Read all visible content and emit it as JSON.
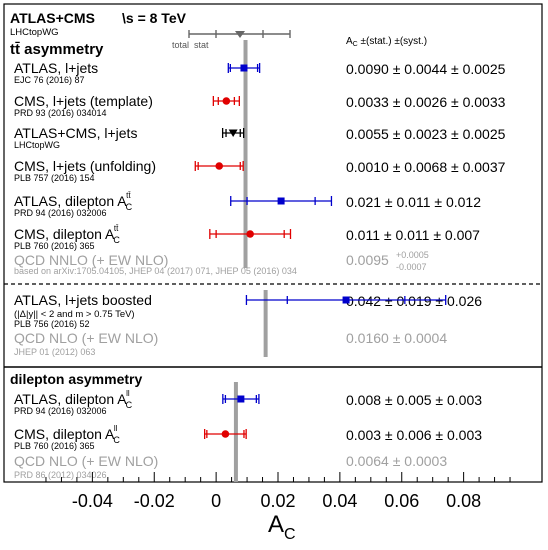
{
  "chart_data": {
    "type": "scatter",
    "xlabel": "A",
    "xlabel_sub": "C",
    "xlim": [
      -0.06,
      0.1
    ],
    "ticks": [
      "-0.04",
      "-0.02",
      "0",
      "0.02",
      "0.04",
      "0.06",
      "0.08"
    ],
    "tick_values": [
      -0.04,
      -0.02,
      0,
      0.02,
      0.04,
      0.06,
      0.08
    ],
    "header": {
      "title": "ATLAS+CMS",
      "energy": "\\s = 8 TeV",
      "group": "LHCtopWG",
      "legend_total": "total",
      "legend_stat": "stat",
      "column_header": "A",
      "column_header_sub": "C",
      "column_header_rest": " ±(stat.) ±(syst.)"
    },
    "sections": {
      "ttbar": "tt̄ asymmetry",
      "dilepton": "dilepton asymmetry"
    },
    "measurements": [
      {
        "label": "ATLAS, l+jets",
        "ref": "EJC 76 (2016) 87",
        "value": 0.009,
        "stat": 0.0044,
        "syst": 0.0025,
        "text": "0.0090 ± 0.0044 ± 0.0025",
        "color": "#0000cc",
        "marker": "square"
      },
      {
        "label": "CMS, l+jets (template)",
        "ref": "PRD 93 (2016) 034014",
        "value": 0.0033,
        "stat": 0.0026,
        "syst": 0.0033,
        "text": "0.0033 ± 0.0026 ± 0.0033",
        "color": "#e00000",
        "marker": "circle"
      },
      {
        "label": "ATLAS+CMS, l+jets",
        "ref": "LHCtopWG",
        "value": 0.0055,
        "stat": 0.0023,
        "syst": 0.0025,
        "text": "0.0055 ± 0.0023 ± 0.0025",
        "color": "#000000",
        "marker": "triangle"
      },
      {
        "label": "CMS, l+jets (unfolding)",
        "ref": "PLB 757 (2016) 154",
        "value": 0.001,
        "stat": 0.0068,
        "syst": 0.0037,
        "text": "0.0010 ± 0.0068 ± 0.0037",
        "color": "#e00000",
        "marker": "circle"
      },
      {
        "label": "ATLAS, dilepton A",
        "label_sub": "C",
        "label_sup": "tt̄",
        "ref": "PRD 94 (2016) 032006",
        "value": 0.021,
        "stat": 0.011,
        "syst": 0.012,
        "text": "0.021 ± 0.011 ± 0.012",
        "color": "#0000cc",
        "marker": "square"
      },
      {
        "label": "CMS, dilepton A",
        "label_sub": "C",
        "label_sup": "tt̄",
        "ref": "PLB 760 (2016) 365",
        "value": 0.011,
        "stat": 0.011,
        "syst": 0.007,
        "text": "0.011 ± 0.011 ± 0.007",
        "color": "#e00000",
        "marker": "circle"
      },
      {
        "label": "ATLAS, l+jets boosted",
        "ref2": "(|Δ|y|| < 2 and m  > 0.75 TeV)",
        "ref": "PLB 756 (2016) 52",
        "value": 0.042,
        "stat": 0.019,
        "syst": 0.026,
        "text": "0.042 ± 0.019 ± 0.026",
        "color": "#0000cc",
        "marker": "square"
      },
      {
        "label": "ATLAS, dilepton A",
        "label_sub": "C",
        "label_sup": "ll",
        "ref": "PRD 94 (2016) 032006",
        "value": 0.008,
        "stat": 0.005,
        "syst": 0.003,
        "text": "0.008 ± 0.005 ± 0.003",
        "color": "#0000cc",
        "marker": "square"
      },
      {
        "label": "CMS, dilepton A",
        "label_sub": "C",
        "label_sup": "ll",
        "ref": "PLB 760 (2016) 365",
        "value": 0.003,
        "stat": 0.006,
        "syst": 0.003,
        "text": "0.003 ± 0.006 ± 0.003",
        "color": "#e00000",
        "marker": "circle"
      }
    ],
    "predictions": [
      {
        "label": "QCD NNLO (+ EW NLO)",
        "value": 0.0095,
        "text": "0.0095",
        "sup": "+0.0005",
        "sub": "-0.0007",
        "ref": "based on arXiv:1705.04105, JHEP 04 (2017) 071, JHEP 05 (2016) 034"
      },
      {
        "label": "QCD NLO (+ EW NLO)",
        "value": 0.016,
        "text": "0.0160 ± 0.0004",
        "ref": "JHEP 01 (2012) 063"
      },
      {
        "label": "QCD NLO (+ EW NLO)",
        "value": 0.0064,
        "text": "0.0064 ± 0.0003",
        "ref": "PRD 86 (2012) 034026"
      }
    ]
  },
  "colors": {
    "blue": "#0000cc",
    "red": "#e00000",
    "black": "#000000",
    "grey": "#a0a0a0",
    "axis": "#000000"
  }
}
